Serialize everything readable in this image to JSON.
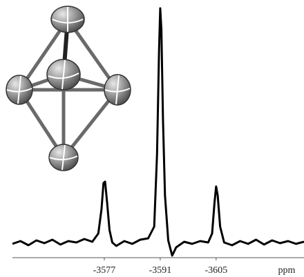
{
  "chart_data": {
    "type": "line",
    "x_label": "ppm",
    "color": "#000000",
    "x": [
      -3554,
      -3556,
      -3558,
      -3560,
      -3562,
      -3564,
      -3566,
      -3568,
      -3570,
      -3572,
      -3574,
      -3575.5,
      -3576.3,
      -3576.8,
      -3577.2,
      -3577.7,
      -3578.3,
      -3579,
      -3580,
      -3582,
      -3584,
      -3586,
      -3588,
      -3589.5,
      -3590.2,
      -3590.7,
      -3591,
      -3591.3,
      -3591.7,
      -3592.2,
      -3593,
      -3594,
      -3595,
      -3597,
      -3599,
      -3601,
      -3603,
      -3604,
      -3604.6,
      -3605,
      -3605.4,
      -3606,
      -3607,
      -3609,
      -3611,
      -3613,
      -3615,
      -3617,
      -3619,
      -3621,
      -3623,
      -3625,
      -3627
    ],
    "values": [
      20,
      24,
      18,
      25,
      21,
      26,
      19,
      24,
      22,
      27,
      23,
      35,
      70,
      108,
      110,
      80,
      40,
      22,
      17,
      24,
      20,
      26,
      28,
      45,
      150,
      300,
      361,
      330,
      200,
      90,
      25,
      3,
      15,
      23,
      20,
      24,
      22,
      35,
      80,
      103,
      90,
      45,
      22,
      18,
      24,
      20,
      26,
      19,
      25,
      21,
      24,
      20,
      23
    ],
    "xlim": [
      -3554,
      -3627
    ],
    "ylim": [
      0,
      370
    ],
    "xticks": [
      -3577,
      -3591,
      -3605
    ]
  }
}
